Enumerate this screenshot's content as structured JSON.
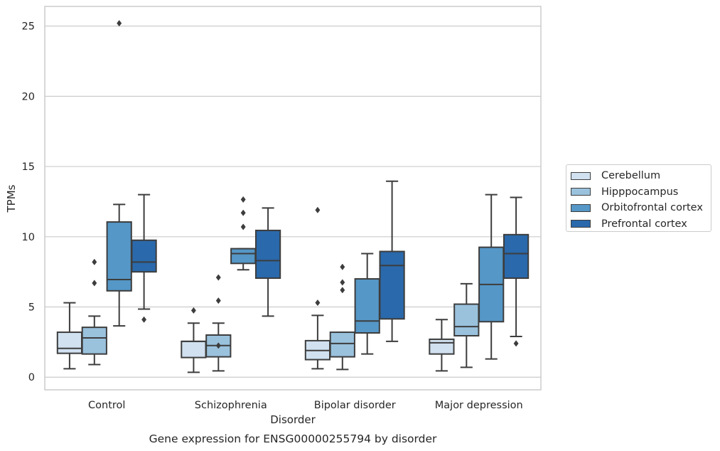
{
  "chart_data": {
    "type": "box",
    "title": "",
    "caption": "Gene expression for ENSG00000255794 by disorder",
    "xlabel": "Disorder",
    "ylabel": "TPMs",
    "ylim": [
      -0.9,
      26.4
    ],
    "yticks": [
      0,
      5,
      10,
      15,
      20,
      25
    ],
    "grid": "horizontal",
    "legend_position": "right",
    "categories": [
      "Control",
      "Schizophrenia",
      "Bipolar disorder",
      "Major depression"
    ],
    "series": [
      {
        "name": "Cerebellum",
        "color": "#d1e1f0",
        "boxes": [
          {
            "whislo": 0.6,
            "q1": 1.7,
            "med": 2.05,
            "q3": 3.2,
            "whishi": 5.3,
            "fliers": []
          },
          {
            "whislo": 0.35,
            "q1": 1.4,
            "med": 2.55,
            "q3": 2.55,
            "whishi": 3.85,
            "fliers": [
              4.75
            ]
          },
          {
            "whislo": 0.6,
            "q1": 1.25,
            "med": 1.9,
            "q3": 2.6,
            "whishi": 4.4,
            "fliers": [
              5.3,
              11.9
            ]
          },
          {
            "whislo": 0.45,
            "q1": 1.65,
            "med": 2.45,
            "q3": 2.7,
            "whishi": 4.1,
            "fliers": []
          }
        ]
      },
      {
        "name": "Hipppocampus",
        "color": "#9ac2dd",
        "boxes": [
          {
            "whislo": 0.9,
            "q1": 1.65,
            "med": 2.8,
            "q3": 3.55,
            "whishi": 4.35,
            "fliers": [
              6.7,
              8.2
            ]
          },
          {
            "whislo": 0.45,
            "q1": 1.45,
            "med": 2.25,
            "q3": 3.0,
            "whishi": 3.85,
            "fliers": [
              2.25,
              5.45,
              7.1
            ]
          },
          {
            "whislo": 0.55,
            "q1": 1.45,
            "med": 2.4,
            "q3": 3.2,
            "whishi": 3.2,
            "fliers": [
              6.2,
              6.75,
              7.85
            ]
          },
          {
            "whislo": 0.7,
            "q1": 2.95,
            "med": 3.6,
            "q3": 5.2,
            "whishi": 6.65,
            "fliers": []
          }
        ]
      },
      {
        "name": "Orbitofrontal cortex",
        "color": "#5597c7",
        "boxes": [
          {
            "whislo": 3.65,
            "q1": 6.15,
            "med": 6.95,
            "q3": 11.05,
            "whishi": 12.3,
            "fliers": [
              25.2
            ]
          },
          {
            "whislo": 7.65,
            "q1": 8.1,
            "med": 8.8,
            "q3": 9.15,
            "whishi": 9.15,
            "fliers": [
              10.7,
              11.7,
              12.65
            ]
          },
          {
            "whislo": 1.65,
            "q1": 3.15,
            "med": 4.0,
            "q3": 7.0,
            "whishi": 8.8,
            "fliers": []
          },
          {
            "whislo": 1.3,
            "q1": 3.95,
            "med": 6.6,
            "q3": 9.25,
            "whishi": 13.0,
            "fliers": []
          }
        ]
      },
      {
        "name": "Prefrontal cortex",
        "color": "#2a69ab",
        "boxes": [
          {
            "whislo": 4.85,
            "q1": 7.5,
            "med": 8.2,
            "q3": 9.75,
            "whishi": 13.0,
            "fliers": [
              4.1
            ]
          },
          {
            "whislo": 4.35,
            "q1": 7.05,
            "med": 8.3,
            "q3": 10.45,
            "whishi": 12.05,
            "fliers": []
          },
          {
            "whislo": 2.55,
            "q1": 4.15,
            "med": 7.95,
            "q3": 8.95,
            "whishi": 13.95,
            "fliers": []
          },
          {
            "whislo": 2.9,
            "q1": 7.05,
            "med": 8.8,
            "q3": 10.15,
            "whishi": 12.8,
            "fliers": [
              2.4
            ]
          }
        ]
      }
    ]
  }
}
